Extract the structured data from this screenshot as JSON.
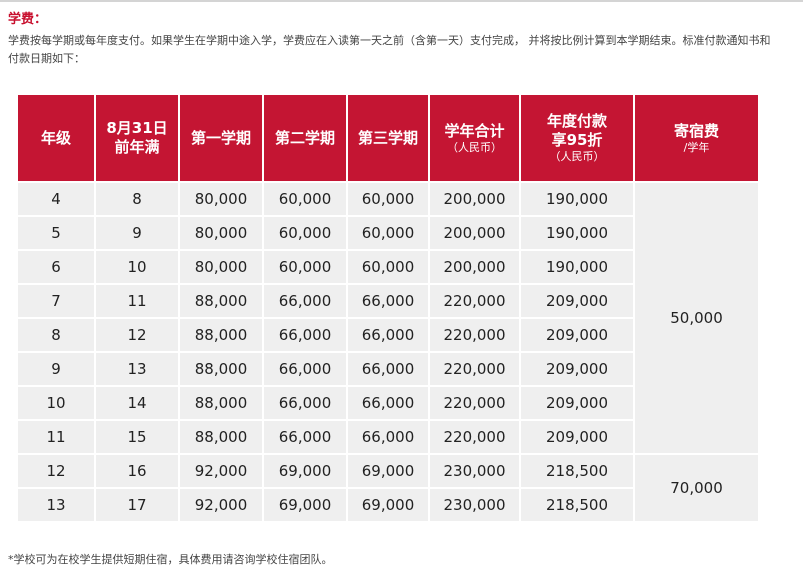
{
  "title": "学费：",
  "intro": "学费按每学期或每年度支付。如果学生在学期中途入学，学费应在入读第一天之前（含第一天）支付完成， 并将按比例计算到本学期结束。标准付款通知书和付款日期如下：",
  "table": {
    "headers": [
      {
        "label": "年级",
        "sub": ""
      },
      {
        "label": "8月31日前年满",
        "sub": ""
      },
      {
        "label": "第一学期",
        "sub": ""
      },
      {
        "label": "第二学期",
        "sub": ""
      },
      {
        "label": "第三学期",
        "sub": ""
      },
      {
        "label": "学年合计",
        "sub": "（人民币）"
      },
      {
        "label": "年度付款享95折",
        "sub": "（人民币）"
      },
      {
        "label": "寄宿费",
        "sub": "/学年"
      }
    ],
    "rows": [
      [
        "4",
        "8",
        "80,000",
        "60,000",
        "60,000",
        "200,000",
        "190,000"
      ],
      [
        "5",
        "9",
        "80,000",
        "60,000",
        "60,000",
        "200,000",
        "190,000"
      ],
      [
        "6",
        "10",
        "80,000",
        "60,000",
        "60,000",
        "200,000",
        "190,000"
      ],
      [
        "7",
        "11",
        "88,000",
        "66,000",
        "66,000",
        "220,000",
        "209,000"
      ],
      [
        "8",
        "12",
        "88,000",
        "66,000",
        "66,000",
        "220,000",
        "209,000"
      ],
      [
        "9",
        "13",
        "88,000",
        "66,000",
        "66,000",
        "220,000",
        "209,000"
      ],
      [
        "10",
        "14",
        "88,000",
        "66,000",
        "66,000",
        "220,000",
        "209,000"
      ],
      [
        "11",
        "15",
        "88,000",
        "66,000",
        "66,000",
        "220,000",
        "209,000"
      ],
      [
        "12",
        "16",
        "92,000",
        "69,000",
        "69,000",
        "230,000",
        "218,500"
      ],
      [
        "13",
        "17",
        "92,000",
        "69,000",
        "69,000",
        "230,000",
        "218,500"
      ]
    ],
    "boarding": [
      {
        "value": "50,000",
        "rows": 8
      },
      {
        "value": "70,000",
        "rows": 2
      }
    ]
  },
  "note": "*学校可为在校学生提供短期住宿，具体费用请咨询学校住宿团队。",
  "colors": {
    "accent": "#c41533",
    "cell": "#efefef"
  }
}
